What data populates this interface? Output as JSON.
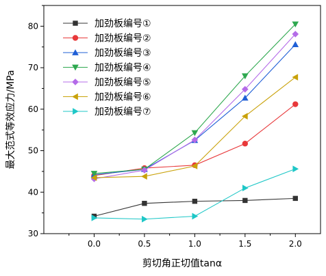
{
  "chart_data": {
    "type": "line",
    "title": "",
    "xlabel": "剪切角正切值tanα",
    "ylabel": "最大范式等效应力/MPa",
    "x": [
      0.0,
      0.5,
      1.0,
      1.5,
      2.0
    ],
    "x_tick_labels": [
      "0.0",
      "0.5",
      "1.0",
      "1.5",
      "2.0"
    ],
    "xlim": [
      -0.5,
      2.25
    ],
    "ylim": [
      30,
      85
    ],
    "y_ticks": [
      30,
      40,
      50,
      60,
      70,
      80
    ],
    "y_tick_labels": [
      "30",
      "40",
      "50",
      "60",
      "70",
      "80"
    ],
    "grid": false,
    "legend_position": "top-left",
    "series": [
      {
        "name": "加劲板编号①",
        "marker": "square",
        "color": "#333333",
        "values": [
          34.2,
          37.3,
          37.8,
          38.0,
          38.5
        ]
      },
      {
        "name": "加劲板编号②",
        "marker": "circle",
        "color": "#e8383a",
        "values": [
          44.0,
          45.8,
          46.5,
          51.7,
          61.2
        ]
      },
      {
        "name": "加劲板编号③",
        "marker": "triangle-up",
        "color": "#1f5fd6",
        "values": [
          44.2,
          45.5,
          52.5,
          62.7,
          75.6
        ]
      },
      {
        "name": "加劲板编号④",
        "marker": "triangle-down",
        "color": "#2ea84f",
        "values": [
          44.5,
          45.5,
          54.3,
          68.0,
          80.5
        ]
      },
      {
        "name": "加劲板编号⑤",
        "marker": "diamond",
        "color": "#b46be8",
        "values": [
          43.2,
          45.3,
          52.6,
          64.8,
          78.1
        ]
      },
      {
        "name": "加劲板编号⑥",
        "marker": "triangle-left",
        "color": "#c9a20a",
        "values": [
          43.5,
          43.8,
          46.3,
          58.3,
          67.7
        ]
      },
      {
        "name": "加劲板编号⑦",
        "marker": "triangle-right",
        "color": "#1ec7c7",
        "values": [
          33.8,
          33.5,
          34.2,
          41.0,
          45.6
        ]
      }
    ]
  }
}
